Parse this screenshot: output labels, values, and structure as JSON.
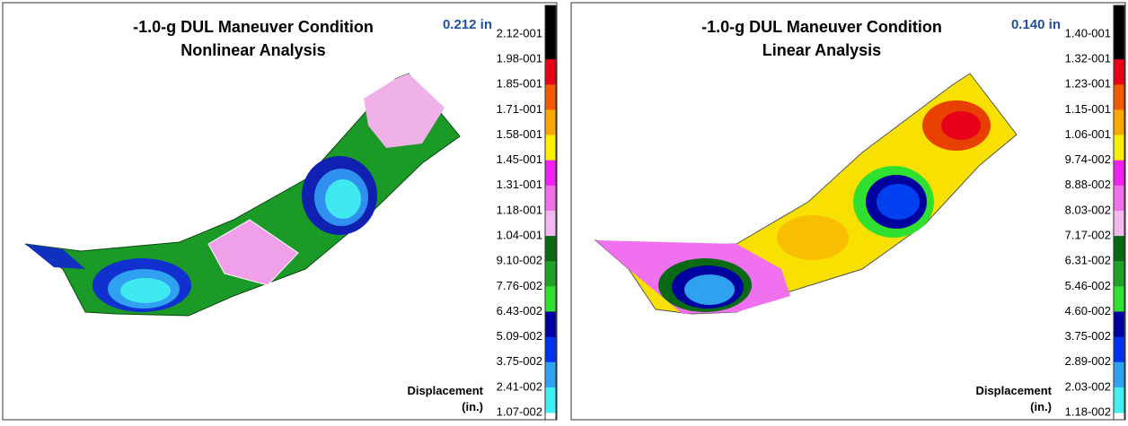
{
  "panels": [
    {
      "title": [
        "-1.0-g DUL Maneuver Condition",
        "Nonlinear Analysis"
      ],
      "max_label": "0.212 in",
      "legend_title": [
        "Displacement",
        "(in.)"
      ],
      "scale_labels": [
        "2.12-001",
        "1.98-001",
        "1.85-001",
        "1.71-001",
        "1.58-001",
        "1.45-001",
        "1.31-001",
        "1.18-001",
        "1.04-001",
        "9.10-002",
        "7.76-002",
        "6.43-002",
        "5.09-002",
        "3.75-002",
        "2.41-002",
        "1.07-002"
      ]
    },
    {
      "title": [
        "-1.0-g DUL Maneuver Condition",
        "Linear Analysis"
      ],
      "max_label": "0.140 in",
      "legend_title": [
        "Displacement",
        "(in.)"
      ],
      "scale_labels": [
        "1.40-001",
        "1.32-001",
        "1.23-001",
        "1.15-001",
        "1.06-001",
        "9.74-002",
        "8.88-002",
        "8.03-002",
        "7.17-002",
        "6.31-002",
        "5.46-002",
        "4.60-002",
        "3.75-002",
        "2.89-002",
        "2.03-002",
        "1.18-002"
      ]
    }
  ],
  "scale_colors": [
    "#000000",
    "#e8001a",
    "#f05a00",
    "#f8a800",
    "#f8f000",
    "#f020f0",
    "#f070e8",
    "#f4b8f0",
    "#0a6a14",
    "#20a028",
    "#30e030",
    "#0000a0",
    "#0030f0",
    "#30a0f0",
    "#40f0f0"
  ]
}
